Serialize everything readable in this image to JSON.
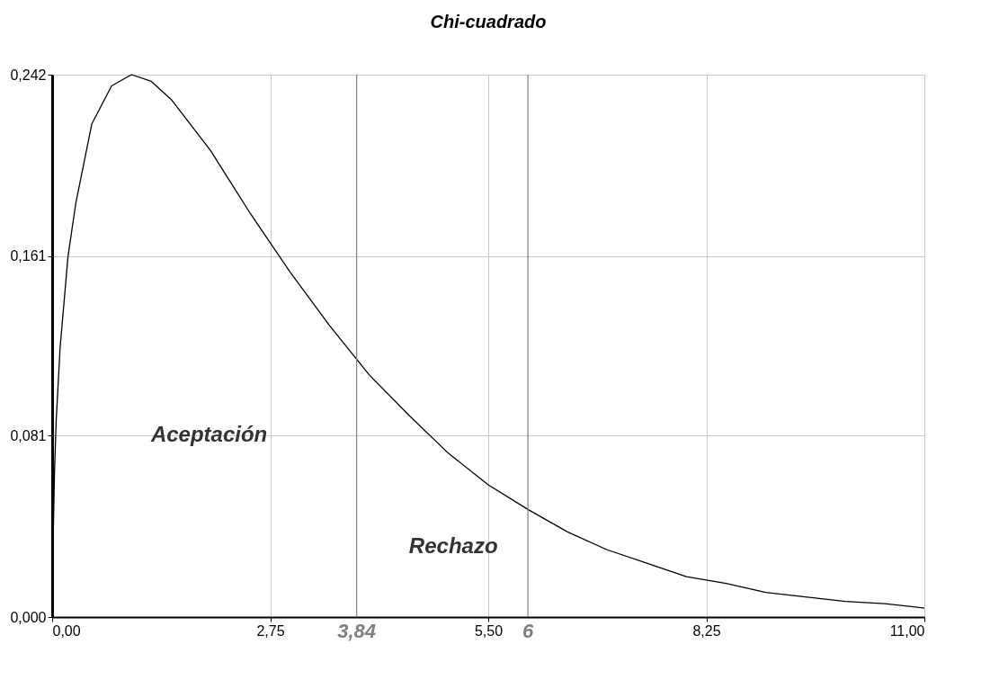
{
  "chart_data": {
    "type": "line",
    "title": "Chi-cuadrado",
    "x": [
      0.01,
      0.03,
      0.05,
      0.1,
      0.2,
      0.3,
      0.5,
      0.75,
      1,
      1.25,
      1.5,
      2,
      2.5,
      3,
      3.5,
      3.84,
      4,
      4.5,
      5,
      5.5,
      6,
      6.5,
      7,
      7.5,
      8,
      8.5,
      9,
      9.5,
      10,
      10.5,
      11
    ],
    "series": [
      {
        "color": "#000000",
        "values": [
          0.03,
          0.065,
          0.087,
          0.12,
          0.161,
          0.185,
          0.22,
          0.237,
          0.242,
          0.239,
          0.231,
          0.208,
          0.18,
          0.154,
          0.13,
          0.115,
          0.108,
          0.09,
          0.073,
          0.059,
          0.048,
          0.038,
          0.03,
          0.024,
          0.018,
          0.015,
          0.011,
          0.009,
          0.007,
          0.006,
          0.004
        ]
      }
    ],
    "xlim": [
      0,
      11
    ],
    "ylim": [
      0,
      0.242
    ],
    "xticks": [
      {
        "value": 0,
        "label": "0,00"
      },
      {
        "value": 2.75,
        "label": "2,75"
      },
      {
        "value": 5.5,
        "label": "5,50"
      },
      {
        "value": 8.25,
        "label": "8,25"
      },
      {
        "value": 11,
        "label": "11,00"
      }
    ],
    "yticks": [
      {
        "value": 0,
        "label": "0,000"
      },
      {
        "value": 0.081,
        "label": "0,081"
      },
      {
        "value": 0.161,
        "label": "0,161"
      },
      {
        "value": 0.242,
        "label": "0,242"
      }
    ],
    "ref_lines": [
      {
        "axis": "x",
        "value": 3.84,
        "label": "3,84",
        "color": "#808080"
      },
      {
        "axis": "x",
        "value": 6,
        "label": "6",
        "color": "#808080"
      }
    ],
    "annotations": [
      "Aceptación",
      "Rechazo"
    ],
    "grid": true,
    "marker": "none",
    "line_style": "solid"
  }
}
